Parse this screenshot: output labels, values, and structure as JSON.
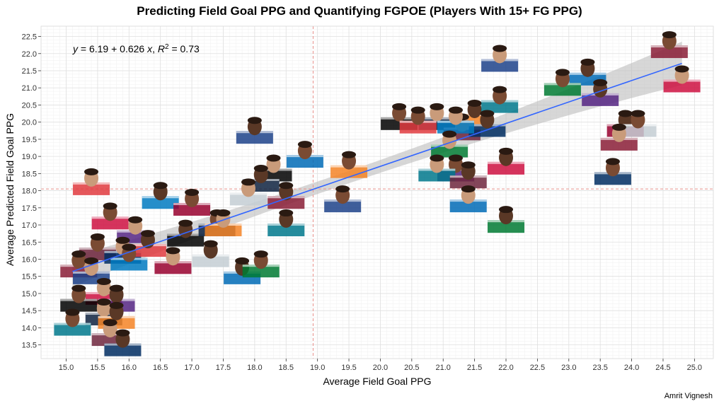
{
  "title": "Predicting Field Goal PPG and Quantifying FGPOE (Players With 15+ FG PPG)",
  "credit": "Amrit Vignesh",
  "chart_data": {
    "type": "scatter",
    "title": "Predicting Field Goal PPG and Quantifying FGPOE (Players With 15+ FG PPG)",
    "xlabel": "Average Field Goal PPG",
    "ylabel": "Average Predicted Field Goal PPG",
    "xlim": [
      14.6,
      25.3
    ],
    "ylim": [
      13.1,
      22.8
    ],
    "xticks": [
      15.0,
      15.5,
      16.0,
      16.5,
      17.0,
      17.5,
      18.0,
      18.5,
      19.0,
      19.5,
      20.0,
      20.5,
      21.0,
      21.5,
      22.0,
      22.5,
      23.0,
      23.5,
      24.0,
      24.5,
      25.0
    ],
    "yticks": [
      13.5,
      14.0,
      14.5,
      15.0,
      15.5,
      16.0,
      16.5,
      17.0,
      17.5,
      18.0,
      18.5,
      19.0,
      19.5,
      20.0,
      20.5,
      21.0,
      21.5,
      22.0,
      22.5
    ],
    "equation": {
      "intercept": 6.19,
      "slope": 0.626,
      "r2": 0.73
    },
    "mean_lines": {
      "x": 18.93,
      "y": 18.05
    },
    "grid": true,
    "points": [
      {
        "x": 24.6,
        "y": 22.2
      },
      {
        "x": 21.9,
        "y": 21.8
      },
      {
        "x": 23.3,
        "y": 21.4
      },
      {
        "x": 22.9,
        "y": 21.1
      },
      {
        "x": 24.8,
        "y": 21.2
      },
      {
        "x": 23.5,
        "y": 20.8
      },
      {
        "x": 20.3,
        "y": 20.1
      },
      {
        "x": 20.9,
        "y": 20.1
      },
      {
        "x": 21.5,
        "y": 20.2
      },
      {
        "x": 21.9,
        "y": 20.6
      },
      {
        "x": 21.3,
        "y": 19.8
      },
      {
        "x": 21.7,
        "y": 19.9
      },
      {
        "x": 20.6,
        "y": 20.0
      },
      {
        "x": 21.2,
        "y": 20.0
      },
      {
        "x": 23.9,
        "y": 19.9
      },
      {
        "x": 24.1,
        "y": 19.9
      },
      {
        "x": 23.8,
        "y": 19.5
      },
      {
        "x": 18.0,
        "y": 19.7
      },
      {
        "x": 18.8,
        "y": 19.0
      },
      {
        "x": 21.1,
        "y": 19.3
      },
      {
        "x": 22.0,
        "y": 18.8
      },
      {
        "x": 21.2,
        "y": 18.6
      },
      {
        "x": 18.3,
        "y": 18.6
      },
      {
        "x": 18.1,
        "y": 18.3
      },
      {
        "x": 19.5,
        "y": 18.7
      },
      {
        "x": 20.9,
        "y": 18.6
      },
      {
        "x": 21.4,
        "y": 18.4
      },
      {
        "x": 23.7,
        "y": 18.5
      },
      {
        "x": 15.4,
        "y": 18.2
      },
      {
        "x": 16.5,
        "y": 17.8
      },
      {
        "x": 17.0,
        "y": 17.6
      },
      {
        "x": 17.9,
        "y": 17.9
      },
      {
        "x": 18.5,
        "y": 17.8
      },
      {
        "x": 19.4,
        "y": 17.7
      },
      {
        "x": 21.4,
        "y": 17.7
      },
      {
        "x": 22.0,
        "y": 17.1
      },
      {
        "x": 15.7,
        "y": 17.2
      },
      {
        "x": 16.1,
        "y": 16.8
      },
      {
        "x": 16.9,
        "y": 16.7
      },
      {
        "x": 17.4,
        "y": 17.0
      },
      {
        "x": 17.5,
        "y": 17.0
      },
      {
        "x": 18.5,
        "y": 17.0
      },
      {
        "x": 15.5,
        "y": 16.3
      },
      {
        "x": 15.9,
        "y": 16.2
      },
      {
        "x": 16.3,
        "y": 16.4
      },
      {
        "x": 16.0,
        "y": 16.0
      },
      {
        "x": 16.7,
        "y": 15.9
      },
      {
        "x": 17.3,
        "y": 16.1
      },
      {
        "x": 15.2,
        "y": 15.8
      },
      {
        "x": 15.4,
        "y": 15.6
      },
      {
        "x": 17.8,
        "y": 15.6
      },
      {
        "x": 18.1,
        "y": 15.8
      },
      {
        "x": 15.6,
        "y": 15.0
      },
      {
        "x": 15.8,
        "y": 14.8
      },
      {
        "x": 15.2,
        "y": 14.8
      },
      {
        "x": 15.6,
        "y": 14.4
      },
      {
        "x": 15.8,
        "y": 14.3
      },
      {
        "x": 15.1,
        "y": 14.1
      },
      {
        "x": 15.7,
        "y": 13.8
      },
      {
        "x": 15.9,
        "y": 13.5
      }
    ]
  }
}
